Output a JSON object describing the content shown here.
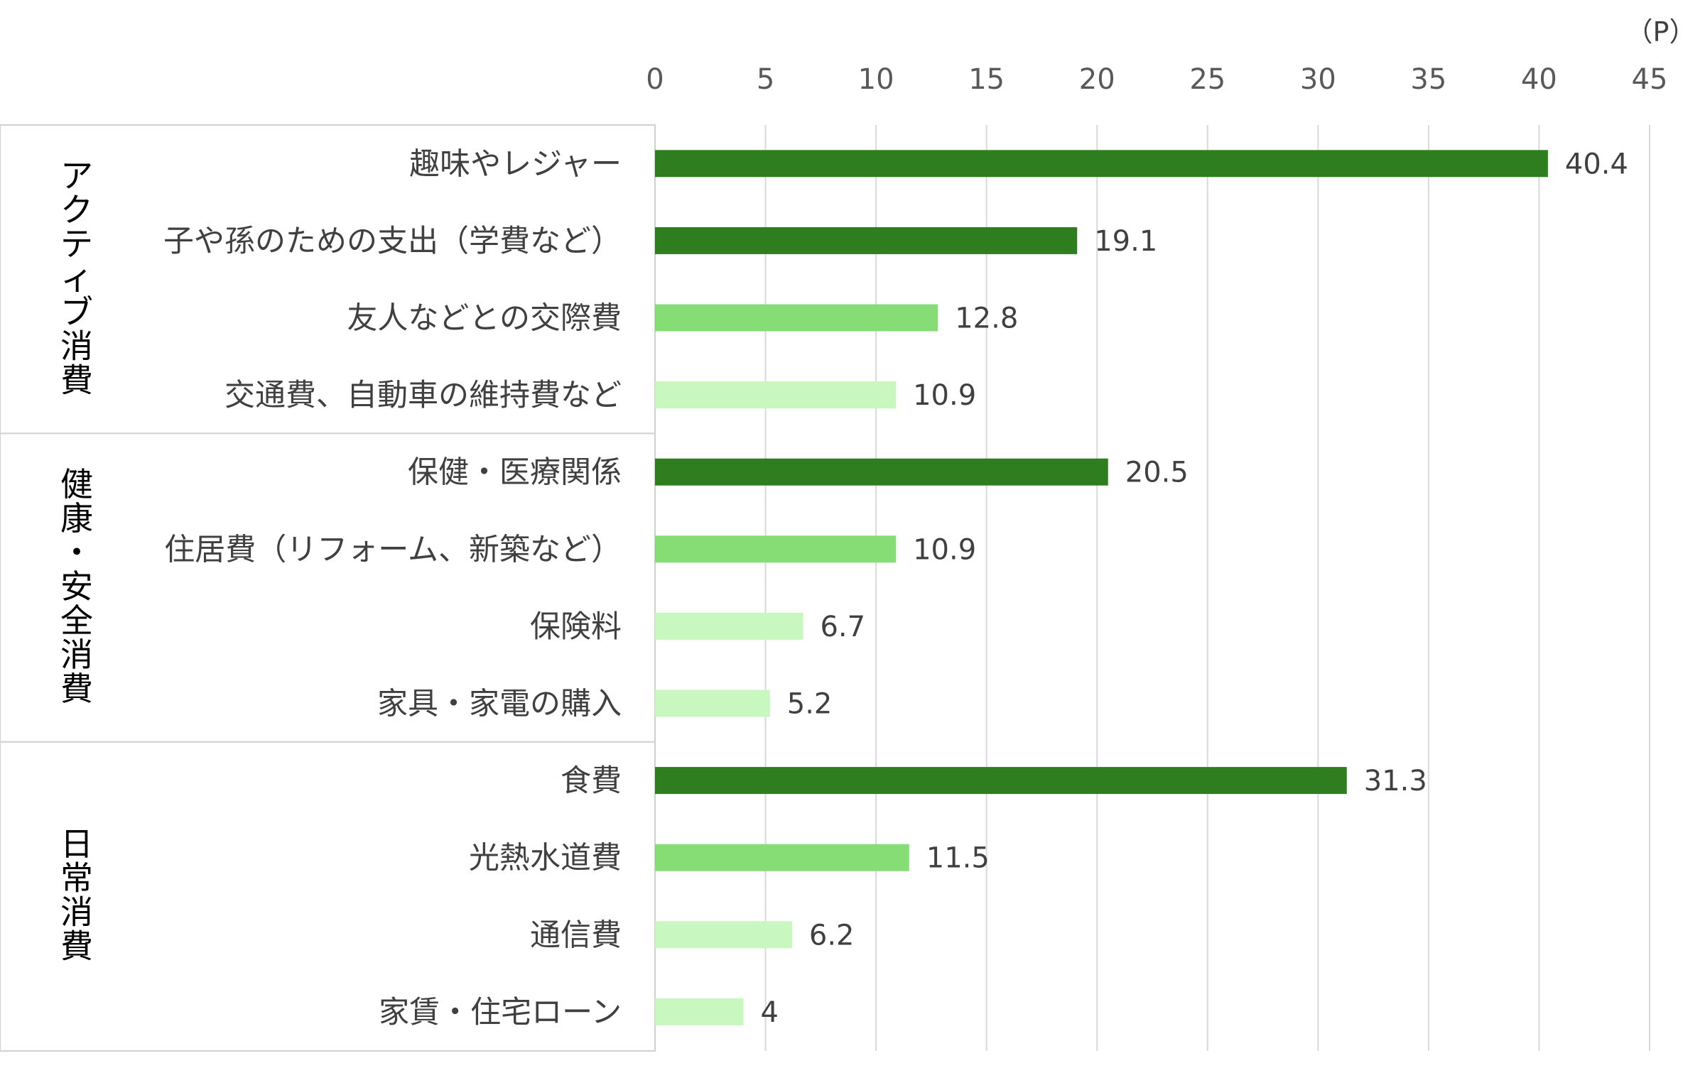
{
  "chart_data": {
    "type": "bar",
    "orientation": "horizontal",
    "unit": "（P）",
    "xlim": [
      0,
      45
    ],
    "ticks": [
      "0",
      "5",
      "10",
      "15",
      "20",
      "25",
      "30",
      "35",
      "40",
      "45"
    ],
    "grid": true,
    "colors": {
      "dark": "#2e7d1f",
      "medium": "#86dd76",
      "light": "#c8f7c0"
    },
    "groups": [
      {
        "label": "アクティブ消費",
        "items": [
          {
            "category": "趣味やレジャー",
            "value": 40.4,
            "value_label": "40.4",
            "shade": "dark"
          },
          {
            "category": "子や孫のための支出（学費など）",
            "value": 19.1,
            "value_label": "19.1",
            "shade": "dark"
          },
          {
            "category": "友人などとの交際費",
            "value": 12.8,
            "value_label": "12.8",
            "shade": "medium"
          },
          {
            "category": "交通費、自動車の維持費など",
            "value": 10.9,
            "value_label": "10.9",
            "shade": "light"
          }
        ]
      },
      {
        "label": "健康・安全消費",
        "items": [
          {
            "category": "保健・医療関係",
            "value": 20.5,
            "value_label": "20.5",
            "shade": "dark"
          },
          {
            "category": "住居費（リフォーム、新築など）",
            "value": 10.9,
            "value_label": "10.9",
            "shade": "medium"
          },
          {
            "category": "保険料",
            "value": 6.7,
            "value_label": "6.7",
            "shade": "light"
          },
          {
            "category": "家具・家電の購入",
            "value": 5.2,
            "value_label": "5.2",
            "shade": "light"
          }
        ]
      },
      {
        "label": "日常消費",
        "items": [
          {
            "category": "食費",
            "value": 31.3,
            "value_label": "31.3",
            "shade": "dark"
          },
          {
            "category": "光熱水道費",
            "value": 11.5,
            "value_label": "11.5",
            "shade": "medium"
          },
          {
            "category": "通信費",
            "value": 6.2,
            "value_label": "6.2",
            "shade": "light"
          },
          {
            "category": "家賃・住宅ローン",
            "value": 4,
            "value_label": "4",
            "shade": "light"
          }
        ]
      }
    ]
  }
}
